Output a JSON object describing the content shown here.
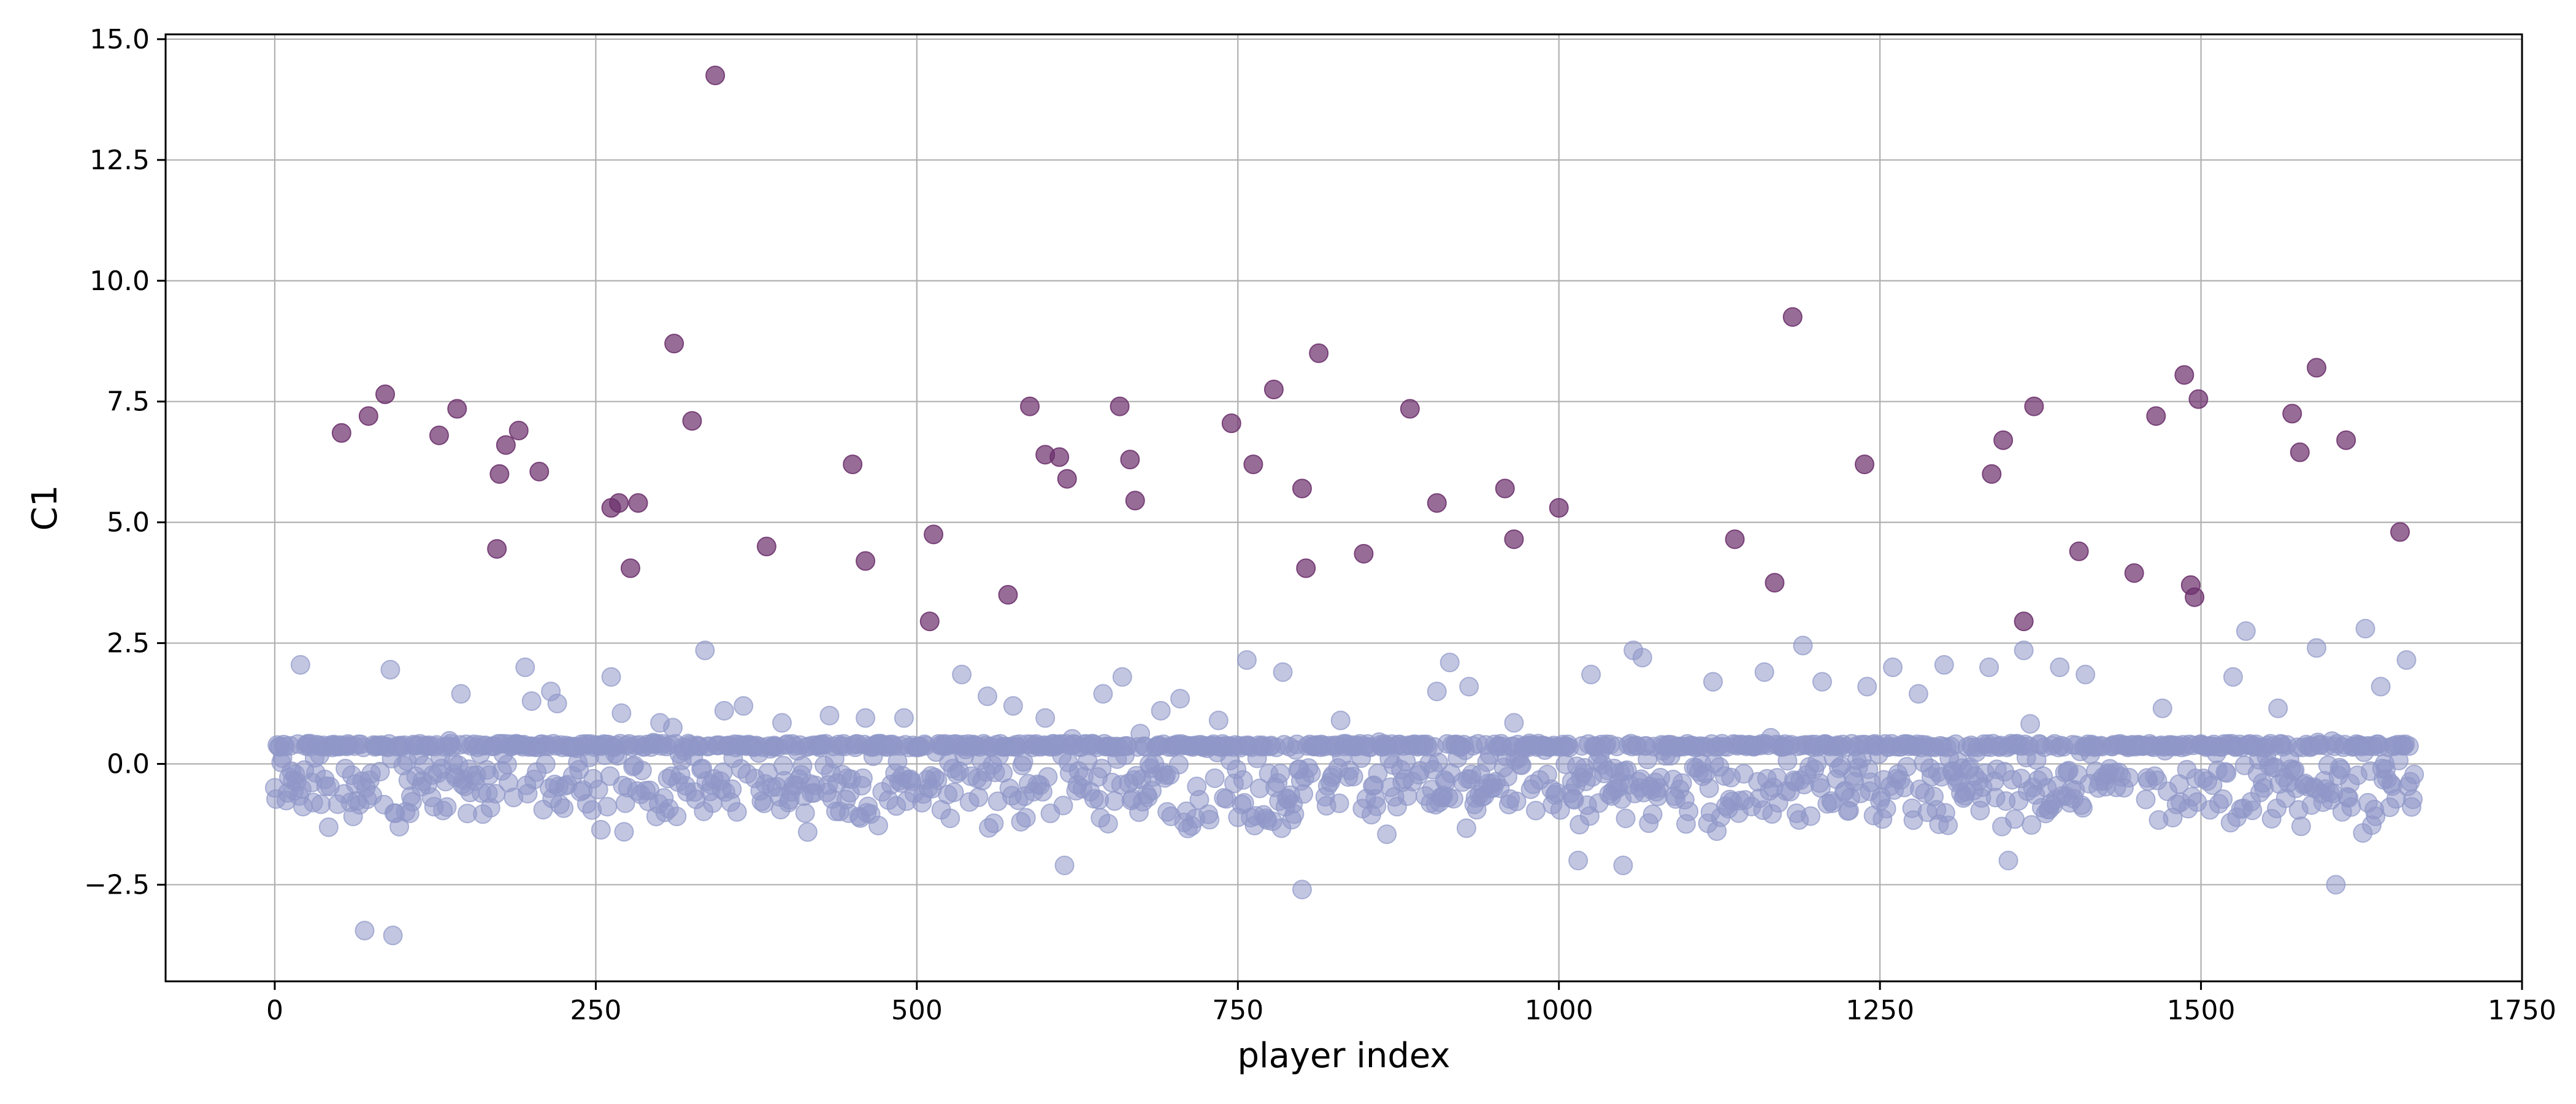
{
  "chart_data": {
    "type": "scatter",
    "xlabel": "player index",
    "ylabel": "C1",
    "xlim": [
      -85,
      1750
    ],
    "ylim": [
      -4.5,
      15.1
    ],
    "xticks": [
      0,
      250,
      500,
      750,
      1000,
      1250,
      1500,
      1750
    ],
    "yticks": [
      -2.5,
      0.0,
      2.5,
      5.0,
      7.5,
      10.0,
      12.5,
      15.0
    ],
    "ytick_labels": [
      "−2.5",
      "0.0",
      "2.5",
      "5.0",
      "7.5",
      "10.0",
      "12.5",
      "15.0"
    ],
    "grid": true,
    "n_points": 1667,
    "series": [
      {
        "color": "#8f97c8",
        "opacity": 0.55,
        "note_points": "normal cluster points, mostly between -2.5 and 2.5",
        "points": [
          [
            20,
            2.05
          ],
          [
            70,
            -3.45
          ],
          [
            90,
            1.95
          ],
          [
            92,
            -3.55
          ],
          [
            145,
            1.45
          ],
          [
            195,
            2.0
          ],
          [
            200,
            1.3
          ],
          [
            215,
            1.5
          ],
          [
            220,
            1.25
          ],
          [
            262,
            1.8
          ],
          [
            270,
            1.05
          ],
          [
            300,
            0.85
          ],
          [
            310,
            0.75
          ],
          [
            335,
            2.35
          ],
          [
            350,
            1.1
          ],
          [
            365,
            1.2
          ],
          [
            395,
            0.85
          ],
          [
            432,
            1.0
          ],
          [
            460,
            0.95
          ],
          [
            490,
            0.95
          ],
          [
            535,
            1.85
          ],
          [
            555,
            1.4
          ],
          [
            575,
            1.2
          ],
          [
            600,
            0.95
          ],
          [
            615,
            -2.1
          ],
          [
            645,
            1.45
          ],
          [
            660,
            1.8
          ],
          [
            690,
            1.1
          ],
          [
            705,
            1.35
          ],
          [
            735,
            0.9
          ],
          [
            757,
            2.15
          ],
          [
            785,
            1.9
          ],
          [
            800,
            -2.6
          ],
          [
            830,
            0.9
          ],
          [
            860,
            0.45
          ],
          [
            905,
            1.5
          ],
          [
            915,
            2.1
          ],
          [
            930,
            1.6
          ],
          [
            965,
            0.85
          ],
          [
            1015,
            -2.0
          ],
          [
            1025,
            1.85
          ],
          [
            1050,
            -2.1
          ],
          [
            1058,
            2.35
          ],
          [
            1065,
            2.2
          ],
          [
            1120,
            1.7
          ],
          [
            1160,
            1.9
          ],
          [
            1190,
            2.45
          ],
          [
            1205,
            1.7
          ],
          [
            1240,
            1.6
          ],
          [
            1260,
            2.0
          ],
          [
            1280,
            1.45
          ],
          [
            1300,
            2.05
          ],
          [
            1335,
            2.0
          ],
          [
            1350,
            -2.0
          ],
          [
            1362,
            2.35
          ],
          [
            1390,
            2.0
          ],
          [
            1410,
            1.85
          ],
          [
            1470,
            1.15
          ],
          [
            1525,
            1.8
          ],
          [
            1535,
            2.75
          ],
          [
            1560,
            1.15
          ],
          [
            1590,
            2.4
          ],
          [
            1605,
            -2.5
          ],
          [
            1628,
            2.8
          ],
          [
            1640,
            1.6
          ],
          [
            1660,
            2.15
          ]
        ]
      },
      {
        "color": "#6b2f6b",
        "opacity": 0.7,
        "note_points": "outlier points",
        "points": [
          [
            52,
            6.85
          ],
          [
            73,
            7.2
          ],
          [
            86,
            7.65
          ],
          [
            128,
            6.8
          ],
          [
            142,
            7.35
          ],
          [
            173,
            4.45
          ],
          [
            175,
            6.0
          ],
          [
            180,
            6.6
          ],
          [
            190,
            6.9
          ],
          [
            206,
            6.05
          ],
          [
            262,
            5.3
          ],
          [
            268,
            5.4
          ],
          [
            277,
            4.05
          ],
          [
            283,
            5.4
          ],
          [
            311,
            8.7
          ],
          [
            325,
            7.1
          ],
          [
            343,
            14.25
          ],
          [
            383,
            4.5
          ],
          [
            450,
            6.2
          ],
          [
            460,
            4.2
          ],
          [
            510,
            2.95
          ],
          [
            513,
            4.75
          ],
          [
            571,
            3.5
          ],
          [
            588,
            7.4
          ],
          [
            600,
            6.4
          ],
          [
            611,
            6.35
          ],
          [
            617,
            5.9
          ],
          [
            658,
            7.4
          ],
          [
            666,
            6.3
          ],
          [
            670,
            5.45
          ],
          [
            745,
            7.05
          ],
          [
            762,
            6.2
          ],
          [
            778,
            7.75
          ],
          [
            800,
            5.7
          ],
          [
            803,
            4.05
          ],
          [
            813,
            8.5
          ],
          [
            848,
            4.35
          ],
          [
            884,
            7.35
          ],
          [
            905,
            5.4
          ],
          [
            958,
            5.7
          ],
          [
            965,
            4.65
          ],
          [
            1000,
            5.3
          ],
          [
            1137,
            4.65
          ],
          [
            1168,
            3.75
          ],
          [
            1182,
            9.25
          ],
          [
            1238,
            6.2
          ],
          [
            1337,
            6.0
          ],
          [
            1346,
            6.7
          ],
          [
            1362,
            2.95
          ],
          [
            1370,
            7.4
          ],
          [
            1405,
            4.4
          ],
          [
            1448,
            3.95
          ],
          [
            1465,
            7.2
          ],
          [
            1487,
            8.05
          ],
          [
            1492,
            3.7
          ],
          [
            1495,
            3.45
          ],
          [
            1498,
            7.55
          ],
          [
            1571,
            7.25
          ],
          [
            1577,
            6.45
          ],
          [
            1590,
            8.2
          ],
          [
            1613,
            6.7
          ],
          [
            1655,
            4.8
          ]
        ]
      }
    ]
  }
}
